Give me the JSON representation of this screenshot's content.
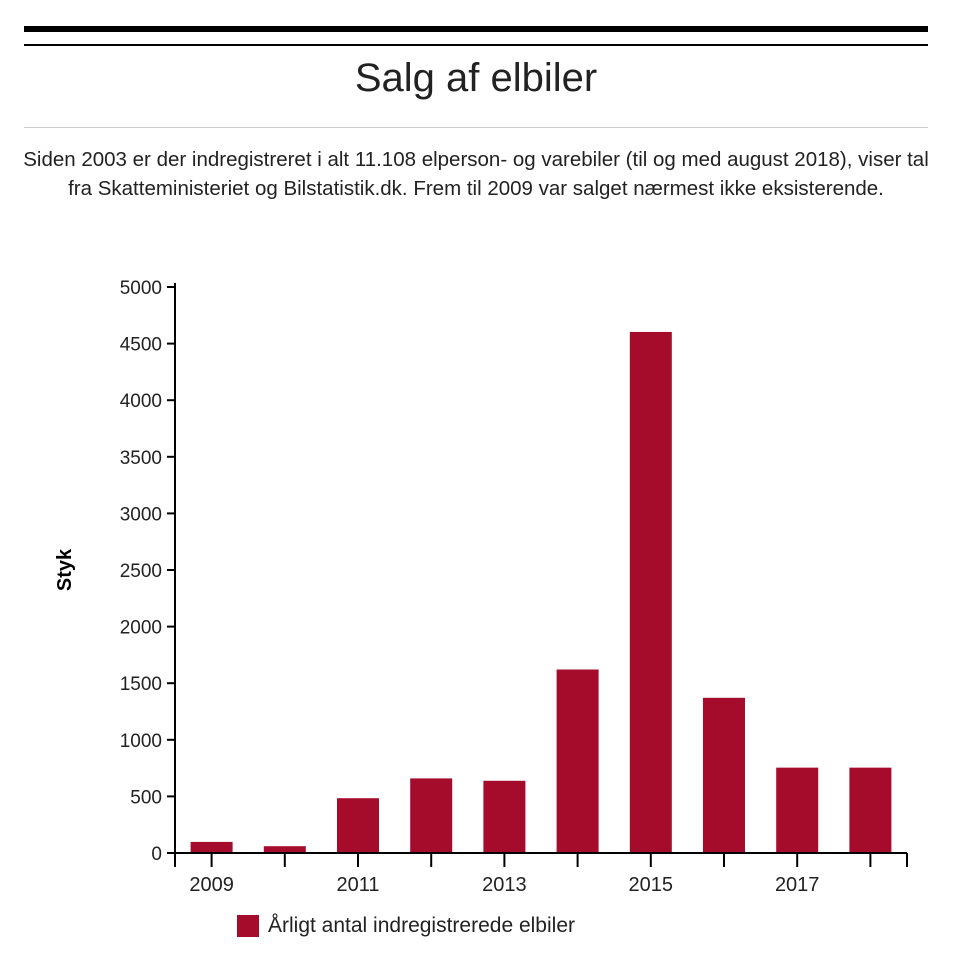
{
  "header": {
    "title": "Salg af elbiler",
    "subtitle": "Siden 2003 er der indregistreret i alt 11.108 elperson- og varebiler (til og med august 2018), viser tal fra Skatteministeriet og Bilstatistik.dk. Frem til 2009 var salget nærmest ikke eksisterende."
  },
  "chart_data": {
    "type": "bar",
    "categories": [
      "2009",
      "2010",
      "2011",
      "2012",
      "2013",
      "2014",
      "2015",
      "2016",
      "2017",
      "2018"
    ],
    "values": [
      98,
      60,
      484,
      659,
      638,
      1621,
      4603,
      1371,
      754,
      754
    ],
    "x_tick_labels": [
      "2009",
      "2011",
      "2013",
      "2015",
      "2017"
    ],
    "y_ticks": [
      0,
      500,
      1000,
      1500,
      2000,
      2500,
      3000,
      3500,
      4000,
      4500,
      5000
    ],
    "ylim": [
      0,
      5000
    ],
    "ylabel": "Styk",
    "xlabel": "",
    "legend": {
      "label": "Årligt antal indregistrerede elbiler",
      "position": "bottom"
    },
    "grid": false,
    "color": "#a50b2b"
  }
}
